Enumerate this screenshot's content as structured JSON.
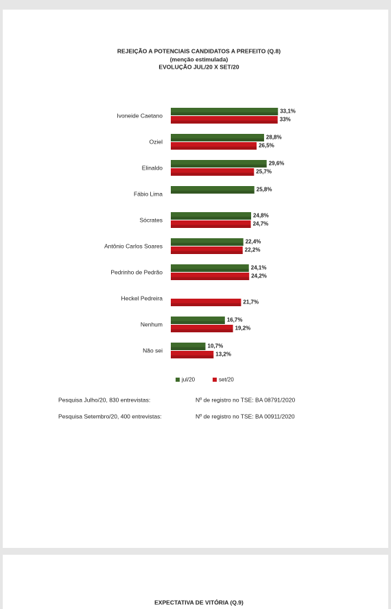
{
  "chart_data": {
    "type": "bar",
    "orientation": "horizontal",
    "title": "REJEIÇÃO A POTENCIAIS CANDIDATOS A PREFEITO  (Q.8)",
    "subtitle": "(menção estimulada)",
    "subtitle2": "EVOLUÇÃO JUL/20  X  SET/20",
    "categories": [
      "Ivoneide Caetano",
      "Oziel",
      "Elinaldo",
      "Fábio Lima",
      "Sócrates",
      "Antônio Carlos Soares",
      "Pedrinho de Pedrão",
      "Heckel Pedreira",
      "Nenhum",
      "Não sei"
    ],
    "series": [
      {
        "name": "jul/20",
        "color": "#3f6b2b",
        "values": [
          33.1,
          28.8,
          29.6,
          25.8,
          24.8,
          22.4,
          24.1,
          null,
          16.7,
          10.7
        ],
        "value_labels": [
          "33,1%",
          "28,8%",
          "29,6%",
          "25,8%",
          "24,8%",
          "22,4%",
          "24,1%",
          null,
          "16,7%",
          "10,7%"
        ]
      },
      {
        "name": "set/20",
        "color": "#c8161d",
        "values": [
          33,
          26.5,
          25.7,
          null,
          24.7,
          22.2,
          24.2,
          21.7,
          19.2,
          13.2
        ],
        "value_labels": [
          "33%",
          "26,5%",
          "25,7%",
          null,
          "24,7%",
          "22,2%",
          "24,2%",
          "21,7%",
          "19,2%",
          "13,2%"
        ]
      }
    ],
    "legend": "bottom"
  },
  "notes": [
    [
      "Pesquisa Julho/20, 830 entrevistas:",
      "Nº de registro no TSE: BA 08791/2020"
    ],
    [
      "Pesquisa Setembro/20, 400 entrevistas:",
      "Nº de registro no TSE: BA 00911/2020"
    ]
  ],
  "next_page_title": "EXPECTATIVA DE VITÓRIA  (Q.9)"
}
